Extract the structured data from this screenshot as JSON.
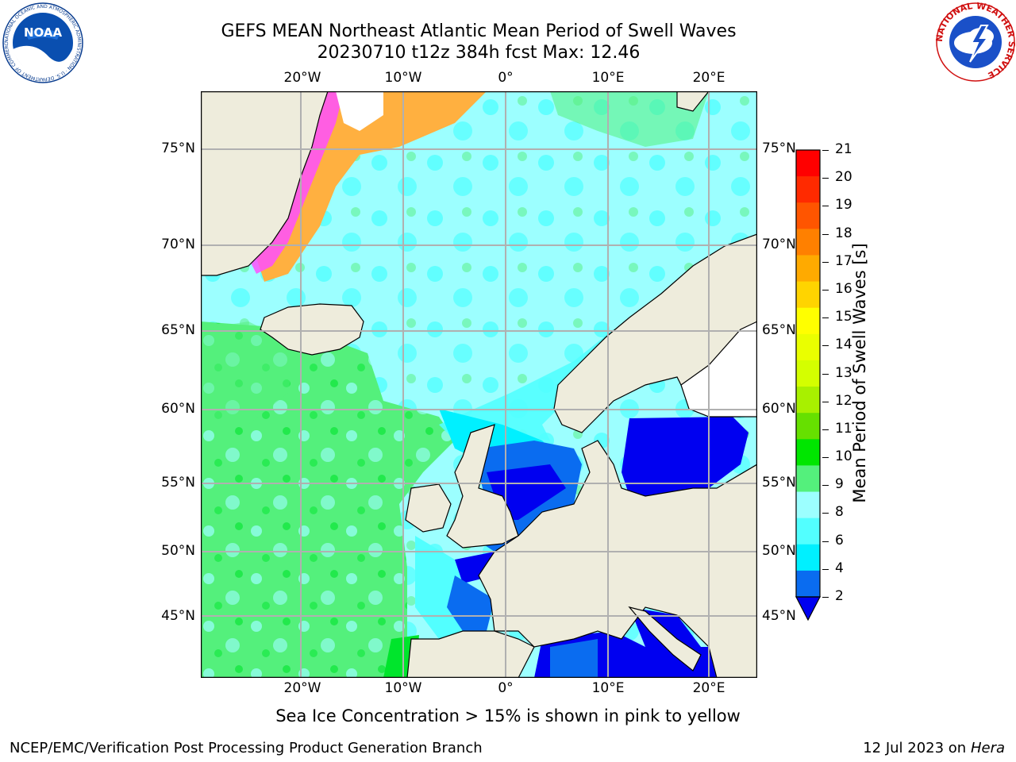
{
  "title_line1": "GEFS MEAN Northeast Atlantic Mean Period of Swell Waves",
  "title_line2": "20230710 t12z 384h fcst   Max: 12.46",
  "logos": {
    "noaa_text": "NOAA",
    "noaa_ring_text": "NATIONAL OCEANIC AND ATMOSPHERIC ADMINISTRATION · U.S. DEPARTMENT OF COMMERCE",
    "nws_ring_text": "NATIONAL WEATHER SERVICE"
  },
  "map": {
    "lon_labels": [
      "20°W",
      "10°W",
      "0°",
      "10°E",
      "20°E"
    ],
    "lat_labels_left": [
      "75°N",
      "70°N",
      "65°N",
      "60°N",
      "55°N",
      "50°N",
      "45°N"
    ],
    "lat_labels_right": [
      "75°N",
      "70°N",
      "65°N",
      "60°N",
      "55°N",
      "50°N",
      "45°N"
    ],
    "colors": {
      "land": "#eeecdc",
      "blue": "#0000f0",
      "mid_blue": "#0a6cf0",
      "cyan": "#00f0ff",
      "light_cyan": "#52ffff",
      "pale_cyan": "#9cffff",
      "green": "#54f07c",
      "bright_green": "#00e52c",
      "ice_pink": "#ff50ff",
      "ice_orange": "#ffb040"
    }
  },
  "colorbar": {
    "label": "Mean Period of Swell Waves [s]",
    "ticks": [
      "21",
      "20",
      "19",
      "18",
      "17",
      "16",
      "15",
      "14",
      "13",
      "12",
      "11",
      "10",
      "9",
      "8",
      "6",
      "4",
      "2"
    ],
    "colors": [
      "#ff0000",
      "#ff2a00",
      "#ff5500",
      "#ff8000",
      "#ffaa00",
      "#ffd400",
      "#ffff00",
      "#eaff00",
      "#d4ff00",
      "#a8f000",
      "#66e000",
      "#00e600",
      "#54f07c",
      "#9cffff",
      "#52ffff",
      "#00f0ff",
      "#0a6cf0",
      "#0000f0"
    ]
  },
  "note": "Sea Ice Concentration > 15% is shown in pink to yellow",
  "footer_left": "NCEP/EMC/Verification Post Processing Product Generation Branch",
  "footer_right_prefix": "12 Jul 2023 on ",
  "footer_right_host": "Hera"
}
